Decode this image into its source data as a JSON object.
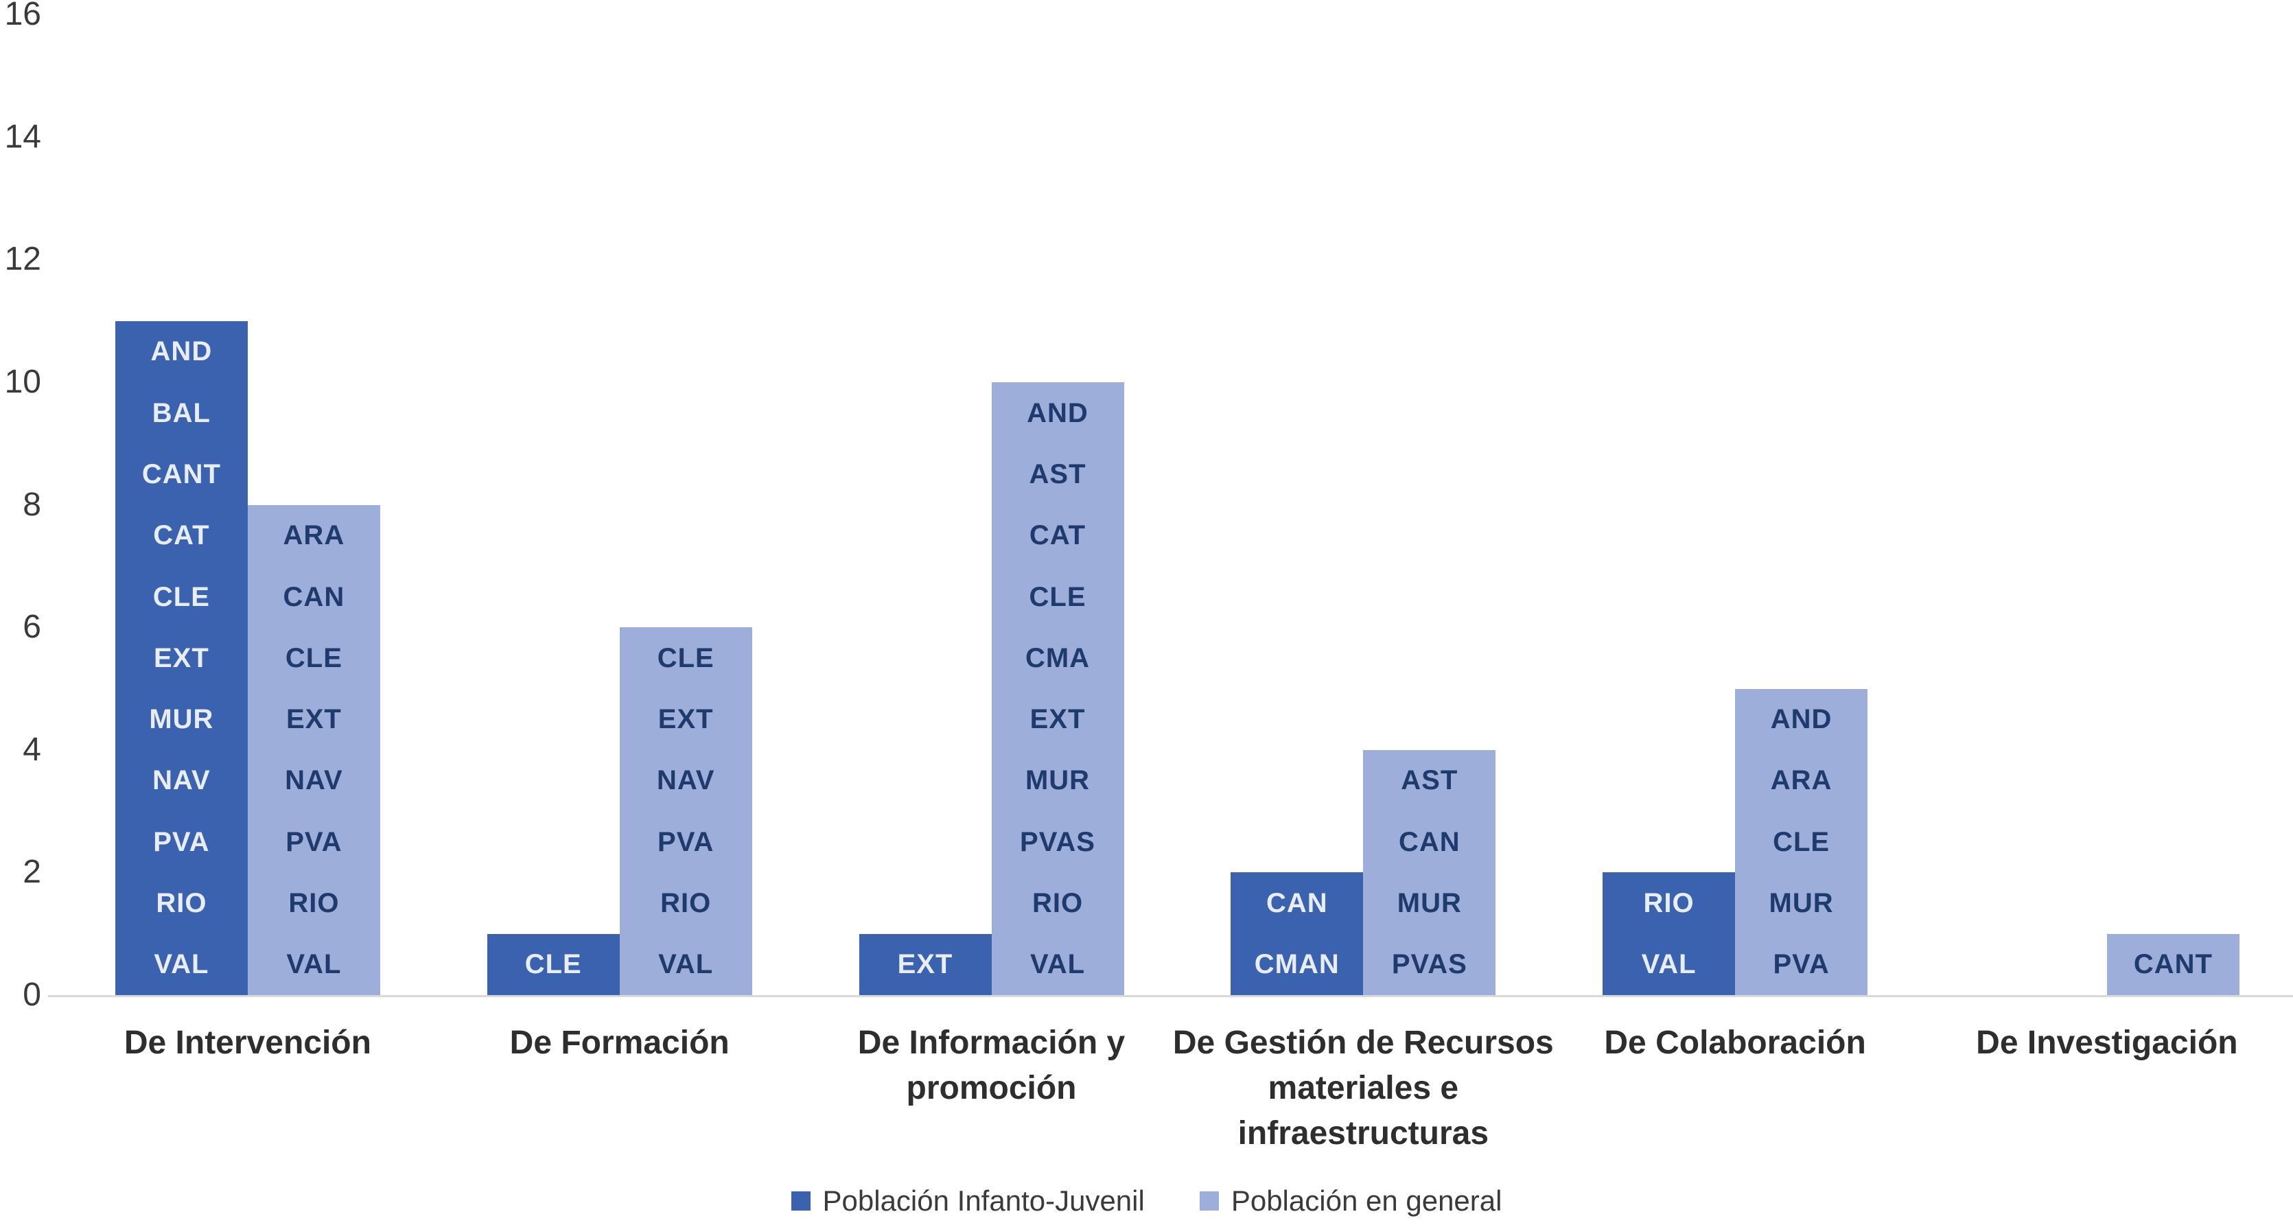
{
  "page": {
    "background": "#FFFFFF"
  },
  "colors": {
    "series_dark": "#3A62AE",
    "series_light": "#9CAED9",
    "dark_bar_label_text": "#E8ECF5",
    "light_bar_label_text": "#1F3A6D",
    "axis_line": "#D9D9D9",
    "tick_text": "#3A3A3A",
    "category_text": "#2E2E2E",
    "legend_text": "#3A3A3A"
  },
  "chart_data": {
    "type": "bar",
    "title": "",
    "xlabel": "",
    "ylabel": "",
    "grid": false,
    "legend_position": "bottom",
    "ylim": [
      0,
      16
    ],
    "yticks": [
      0,
      2,
      4,
      6,
      8,
      10,
      12,
      14,
      16
    ],
    "categories": [
      {
        "label": "De Intervención",
        "lines": [
          "De Intervención"
        ]
      },
      {
        "label": "De Formación",
        "lines": [
          "De Formación"
        ]
      },
      {
        "label": "De Información y promoción",
        "lines": [
          "De Información y",
          "promoción"
        ]
      },
      {
        "label": "De Gestión de Recursos materiales e infraestructuras",
        "lines": [
          "De Gestión de Recursos",
          "materiales e",
          "infraestructuras"
        ]
      },
      {
        "label": "De Colaboración",
        "lines": [
          "De Colaboración"
        ]
      },
      {
        "label": "De Investigación",
        "lines": [
          "De Investigación"
        ]
      }
    ],
    "series": [
      {
        "name": "Población Infanto-Juvenil",
        "color": "#3A62AE",
        "label_color": "#E8ECF5",
        "values": [
          11,
          1,
          1,
          2,
          2,
          0
        ],
        "bar_labels": [
          [
            "AND",
            "BAL",
            "CANT",
            "CAT",
            "CLE",
            "EXT",
            "MUR",
            "NAV",
            "PVA",
            "RIO",
            "VAL"
          ],
          [
            "CLE"
          ],
          [
            "EXT"
          ],
          [
            "CAN",
            "CMAN"
          ],
          [
            "RIO",
            "VAL"
          ],
          []
        ]
      },
      {
        "name": "Población en general",
        "color": "#9CAED9",
        "label_color": "#1F3A6D",
        "values": [
          8,
          6,
          10,
          4,
          5,
          1
        ],
        "bar_labels": [
          [
            "ARA",
            "CAN",
            "CLE",
            "EXT",
            "NAV",
            "PVA",
            "RIO",
            "VAL"
          ],
          [
            "CLE",
            "EXT",
            "NAV",
            "PVA",
            "RIO",
            "VAL"
          ],
          [
            "AND",
            "AST",
            "CAT",
            "CLE",
            "CMA",
            "EXT",
            "MUR",
            "PVAS",
            "RIO",
            "VAL"
          ],
          [
            "AST",
            "CAN",
            "MUR",
            "PVAS"
          ],
          [
            "AND",
            "ARA",
            "CLE",
            "MUR",
            "PVA"
          ],
          [
            "CANT"
          ]
        ]
      }
    ]
  }
}
